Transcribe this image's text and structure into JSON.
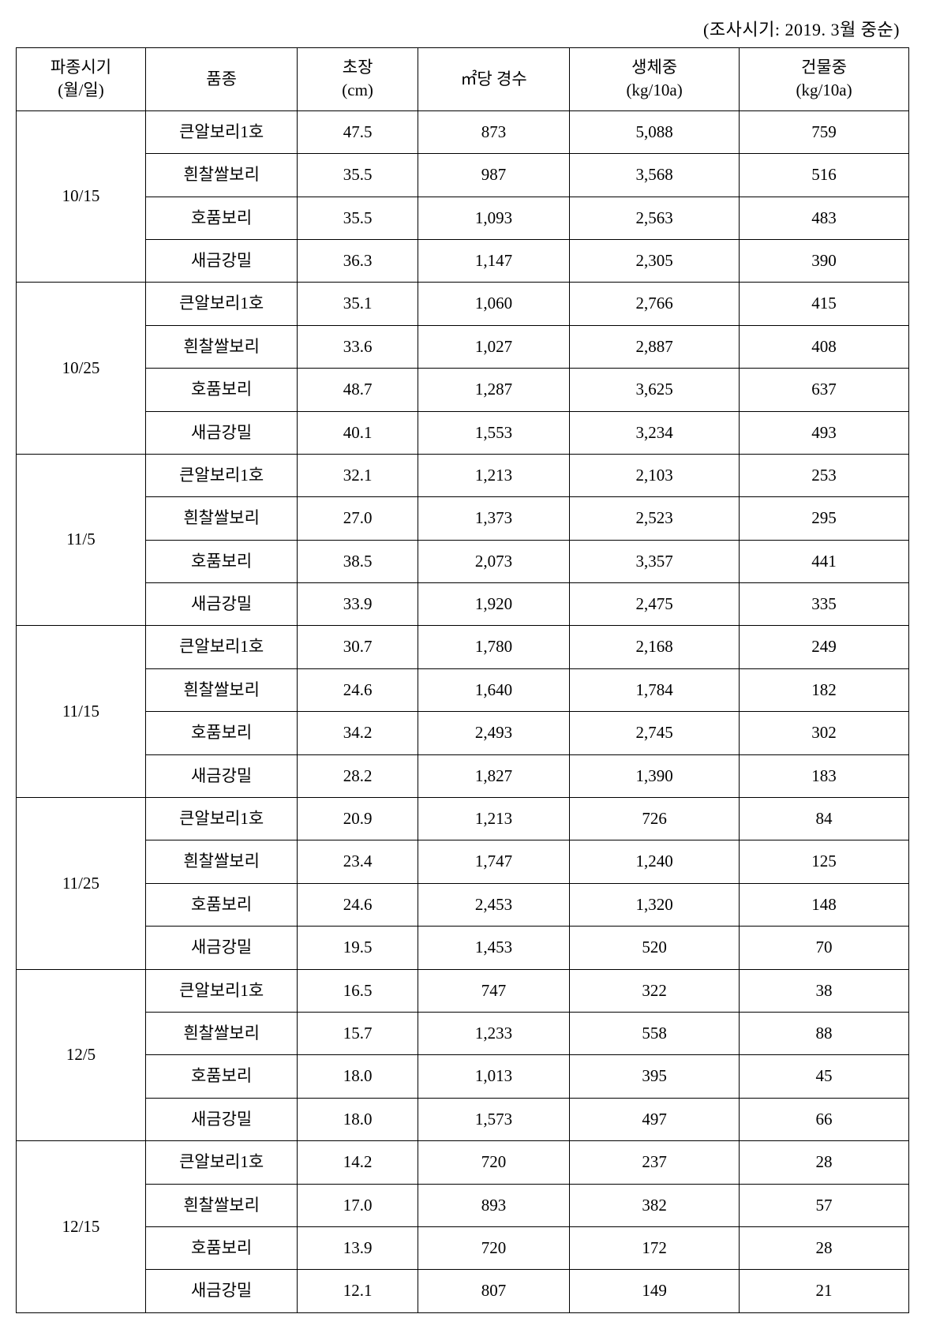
{
  "caption": "(조사시기: 2019. 3월 중순)",
  "headers": {
    "date": {
      "line1": "파종시기",
      "line2": "(월/일)"
    },
    "variety": "품종",
    "height": {
      "line1": "초장",
      "line2": "(cm)"
    },
    "stems": "㎡당 경수",
    "fresh": {
      "line1": "생체중",
      "line2": "(kg/10a)"
    },
    "dry": {
      "line1": "건물중",
      "line2": "(kg/10a)"
    }
  },
  "groups": [
    {
      "date": "10/15",
      "rows": [
        {
          "variety": "큰알보리1호",
          "height": "47.5",
          "stems": "873",
          "fresh": "5,088",
          "dry": "759"
        },
        {
          "variety": "흰찰쌀보리",
          "height": "35.5",
          "stems": "987",
          "fresh": "3,568",
          "dry": "516"
        },
        {
          "variety": "호품보리",
          "height": "35.5",
          "stems": "1,093",
          "fresh": "2,563",
          "dry": "483"
        },
        {
          "variety": "새금강밀",
          "height": "36.3",
          "stems": "1,147",
          "fresh": "2,305",
          "dry": "390"
        }
      ]
    },
    {
      "date": "10/25",
      "rows": [
        {
          "variety": "큰알보리1호",
          "height": "35.1",
          "stems": "1,060",
          "fresh": "2,766",
          "dry": "415"
        },
        {
          "variety": "흰찰쌀보리",
          "height": "33.6",
          "stems": "1,027",
          "fresh": "2,887",
          "dry": "408"
        },
        {
          "variety": "호품보리",
          "height": "48.7",
          "stems": "1,287",
          "fresh": "3,625",
          "dry": "637"
        },
        {
          "variety": "새금강밀",
          "height": "40.1",
          "stems": "1,553",
          "fresh": "3,234",
          "dry": "493"
        }
      ]
    },
    {
      "date": "11/5",
      "rows": [
        {
          "variety": "큰알보리1호",
          "height": "32.1",
          "stems": "1,213",
          "fresh": "2,103",
          "dry": "253"
        },
        {
          "variety": "흰찰쌀보리",
          "height": "27.0",
          "stems": "1,373",
          "fresh": "2,523",
          "dry": "295"
        },
        {
          "variety": "호품보리",
          "height": "38.5",
          "stems": "2,073",
          "fresh": "3,357",
          "dry": "441"
        },
        {
          "variety": "새금강밀",
          "height": "33.9",
          "stems": "1,920",
          "fresh": "2,475",
          "dry": "335"
        }
      ]
    },
    {
      "date": "11/15",
      "rows": [
        {
          "variety": "큰알보리1호",
          "height": "30.7",
          "stems": "1,780",
          "fresh": "2,168",
          "dry": "249"
        },
        {
          "variety": "흰찰쌀보리",
          "height": "24.6",
          "stems": "1,640",
          "fresh": "1,784",
          "dry": "182"
        },
        {
          "variety": "호품보리",
          "height": "34.2",
          "stems": "2,493",
          "fresh": "2,745",
          "dry": "302"
        },
        {
          "variety": "새금강밀",
          "height": "28.2",
          "stems": "1,827",
          "fresh": "1,390",
          "dry": "183"
        }
      ]
    },
    {
      "date": "11/25",
      "rows": [
        {
          "variety": "큰알보리1호",
          "height": "20.9",
          "stems": "1,213",
          "fresh": "726",
          "dry": "84"
        },
        {
          "variety": "흰찰쌀보리",
          "height": "23.4",
          "stems": "1,747",
          "fresh": "1,240",
          "dry": "125"
        },
        {
          "variety": "호품보리",
          "height": "24.6",
          "stems": "2,453",
          "fresh": "1,320",
          "dry": "148"
        },
        {
          "variety": "새금강밀",
          "height": "19.5",
          "stems": "1,453",
          "fresh": "520",
          "dry": "70"
        }
      ]
    },
    {
      "date": "12/5",
      "rows": [
        {
          "variety": "큰알보리1호",
          "height": "16.5",
          "stems": "747",
          "fresh": "322",
          "dry": "38"
        },
        {
          "variety": "흰찰쌀보리",
          "height": "15.7",
          "stems": "1,233",
          "fresh": "558",
          "dry": "88"
        },
        {
          "variety": "호품보리",
          "height": "18.0",
          "stems": "1,013",
          "fresh": "395",
          "dry": "45"
        },
        {
          "variety": "새금강밀",
          "height": "18.0",
          "stems": "1,573",
          "fresh": "497",
          "dry": "66"
        }
      ]
    },
    {
      "date": "12/15",
      "rows": [
        {
          "variety": "큰알보리1호",
          "height": "14.2",
          "stems": "720",
          "fresh": "237",
          "dry": "28"
        },
        {
          "variety": "흰찰쌀보리",
          "height": "17.0",
          "stems": "893",
          "fresh": "382",
          "dry": "57"
        },
        {
          "variety": "호품보리",
          "height": "13.9",
          "stems": "720",
          "fresh": "172",
          "dry": "28"
        },
        {
          "variety": "새금강밀",
          "height": "12.1",
          "stems": "807",
          "fresh": "149",
          "dry": "21"
        }
      ]
    }
  ],
  "styling": {
    "text_color": "#000000",
    "border_color": "#000000",
    "background_color": "#ffffff",
    "header_fontsize": 21,
    "cell_fontsize": 21,
    "caption_fontsize": 22
  }
}
